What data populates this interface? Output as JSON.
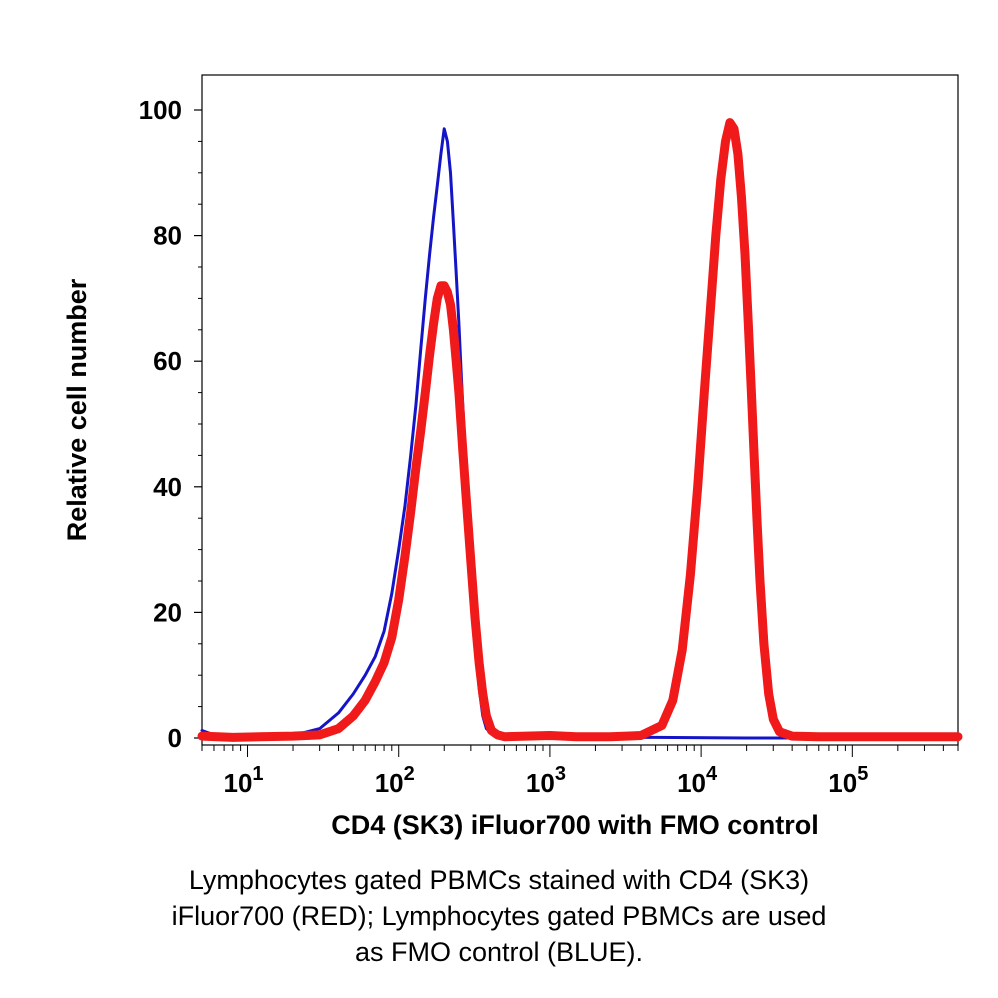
{
  "chart_data": {
    "type": "line",
    "title": "",
    "xlabel": "CD4 (SK3) iFluor700 with FMO control",
    "ylabel": "Relative cell number",
    "x_scale": "log10",
    "xlim": [
      5,
      500000
    ],
    "ylim": [
      0,
      105
    ],
    "y_ticks": [
      "0",
      "20",
      "40",
      "60",
      "80",
      "100"
    ],
    "x_ticks": [
      {
        "base": "10",
        "exp": "1"
      },
      {
        "base": "10",
        "exp": "2"
      },
      {
        "base": "10",
        "exp": "3"
      },
      {
        "base": "10",
        "exp": "4"
      },
      {
        "base": "10",
        "exp": "5"
      }
    ],
    "grid": false,
    "series": [
      {
        "name": "FMO control (BLUE)",
        "color": "#1515c8",
        "points": [
          [
            5,
            1.2
          ],
          [
            6,
            0.5
          ],
          [
            8,
            0.2
          ],
          [
            12,
            0.3
          ],
          [
            20,
            0.4
          ],
          [
            30,
            1.5
          ],
          [
            40,
            4
          ],
          [
            50,
            7
          ],
          [
            60,
            10
          ],
          [
            70,
            13
          ],
          [
            80,
            17
          ],
          [
            90,
            23
          ],
          [
            100,
            30
          ],
          [
            110,
            37
          ],
          [
            120,
            45
          ],
          [
            130,
            53
          ],
          [
            140,
            62
          ],
          [
            150,
            70
          ],
          [
            160,
            77
          ],
          [
            170,
            83
          ],
          [
            180,
            88
          ],
          [
            190,
            93
          ],
          [
            200,
            97
          ],
          [
            210,
            95
          ],
          [
            220,
            90
          ],
          [
            230,
            82
          ],
          [
            240,
            74
          ],
          [
            250,
            66
          ],
          [
            260,
            57
          ],
          [
            280,
            42
          ],
          [
            300,
            28
          ],
          [
            320,
            16
          ],
          [
            340,
            8
          ],
          [
            360,
            3.5
          ],
          [
            380,
            1.5
          ],
          [
            420,
            0.5
          ],
          [
            500,
            0.2
          ],
          [
            1000,
            0.1
          ],
          [
            5000,
            0.1
          ],
          [
            20000,
            0
          ],
          [
            500000,
            0
          ]
        ]
      },
      {
        "name": "CD4 (SK3) iFluor700 (RED)",
        "color": "#f01a1a",
        "points": [
          [
            5,
            0.3
          ],
          [
            8,
            0.1
          ],
          [
            12,
            0.2
          ],
          [
            20,
            0.3
          ],
          [
            30,
            0.5
          ],
          [
            40,
            1.5
          ],
          [
            50,
            3.5
          ],
          [
            60,
            6
          ],
          [
            70,
            9
          ],
          [
            80,
            12
          ],
          [
            90,
            16
          ],
          [
            100,
            22
          ],
          [
            110,
            29
          ],
          [
            120,
            36
          ],
          [
            130,
            43
          ],
          [
            140,
            49
          ],
          [
            150,
            55
          ],
          [
            160,
            61
          ],
          [
            170,
            66
          ],
          [
            180,
            70
          ],
          [
            190,
            72
          ],
          [
            200,
            72
          ],
          [
            210,
            71
          ],
          [
            220,
            69
          ],
          [
            230,
            65
          ],
          [
            240,
            60
          ],
          [
            250,
            55
          ],
          [
            265,
            46
          ],
          [
            280,
            38
          ],
          [
            300,
            28
          ],
          [
            320,
            19
          ],
          [
            340,
            12
          ],
          [
            360,
            7
          ],
          [
            380,
            3.5
          ],
          [
            410,
            1.2
          ],
          [
            450,
            0.5
          ],
          [
            500,
            0.2
          ],
          [
            700,
            0.3
          ],
          [
            1000,
            0.4
          ],
          [
            1500,
            0.2
          ],
          [
            2500,
            0.2
          ],
          [
            4000,
            0.4
          ],
          [
            5500,
            2
          ],
          [
            6500,
            6
          ],
          [
            7500,
            14
          ],
          [
            8500,
            26
          ],
          [
            9500,
            40
          ],
          [
            10500,
            55
          ],
          [
            11500,
            68
          ],
          [
            12500,
            80
          ],
          [
            13500,
            89
          ],
          [
            14500,
            95
          ],
          [
            15500,
            98
          ],
          [
            16500,
            97
          ],
          [
            17500,
            93
          ],
          [
            18500,
            86
          ],
          [
            19500,
            77
          ],
          [
            20500,
            66
          ],
          [
            21500,
            55
          ],
          [
            22500,
            44
          ],
          [
            23500,
            34
          ],
          [
            24500,
            25
          ],
          [
            26000,
            15
          ],
          [
            28000,
            7
          ],
          [
            30000,
            3
          ],
          [
            33000,
            1
          ],
          [
            40000,
            0.3
          ],
          [
            60000,
            0.2
          ],
          [
            100000,
            0.2
          ],
          [
            200000,
            0.2
          ],
          [
            500000,
            0.2
          ]
        ]
      }
    ]
  },
  "caption_lines": [
    "Lymphocytes gated PBMCs stained with CD4 (SK3)",
    "iFluor700 (RED); Lymphocytes gated PBMCs are used",
    "as FMO control (BLUE)."
  ]
}
